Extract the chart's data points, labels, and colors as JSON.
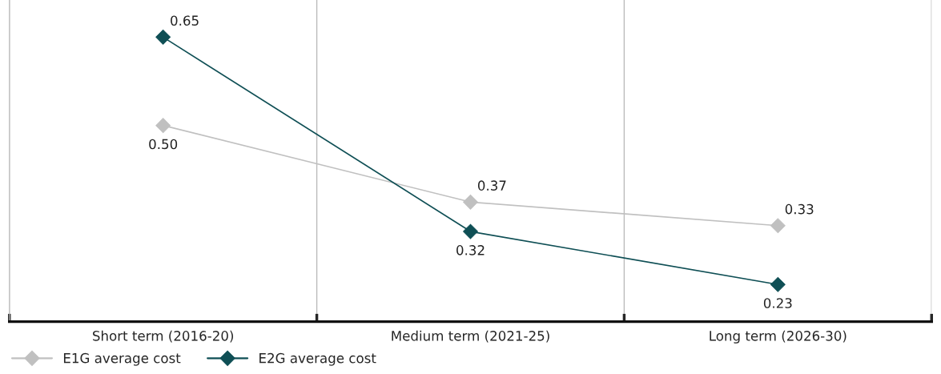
{
  "chart_data": {
    "type": "line",
    "categories": [
      "Short term (2016-20)",
      "Medium term (2021-25)",
      "Long term (2026-30)"
    ],
    "series": [
      {
        "name": "E1G average cost",
        "color": "#c0c0c0",
        "values": [
          0.5,
          0.37,
          0.33
        ],
        "value_labels": [
          "0.50",
          "0.37",
          "0.33"
        ]
      },
      {
        "name": "E2G average cost",
        "color": "#0f4f55",
        "values": [
          0.65,
          0.32,
          0.23
        ],
        "value_labels": [
          "0.65",
          "0.32",
          "0.23"
        ]
      }
    ],
    "marker": "diamond",
    "line_style": "solid",
    "grid": "x",
    "legend": "bottom left"
  }
}
